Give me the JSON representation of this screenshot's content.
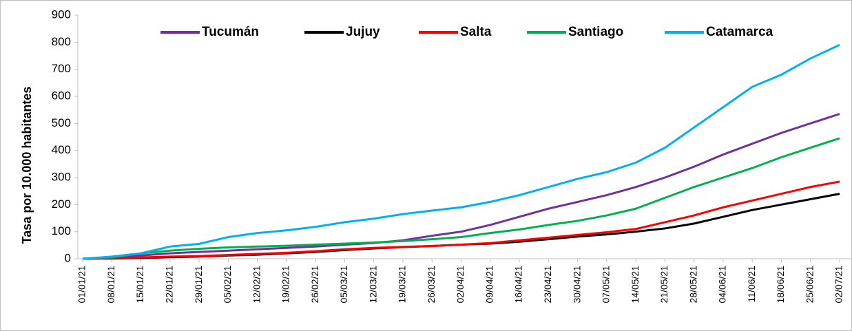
{
  "chart_data": {
    "type": "line",
    "y_label": "Tasa por 10.000 habitantes",
    "categories": [
      "01/01/21",
      "08/01/21",
      "15/01/21",
      "22/01/21",
      "29/01/21",
      "05/02/21",
      "12/02/21",
      "19/02/21",
      "26/02/21",
      "05/03/21",
      "12/03/21",
      "19/03/21",
      "26/03/21",
      "02/04/21",
      "09/04/21",
      "16/04/21",
      "23/04/21",
      "30/04/21",
      "07/05/21",
      "14/05/21",
      "21/05/21",
      "28/05/21",
      "04/06/21",
      "11/06/21",
      "18/06/21",
      "25/06/21",
      "02/07/21"
    ],
    "series": [
      {
        "name": "Tucumán",
        "color": "#7030a0",
        "values": [
          0,
          5,
          12,
          20,
          25,
          30,
          35,
          40,
          45,
          52,
          58,
          68,
          85,
          100,
          125,
          155,
          185,
          210,
          235,
          265,
          300,
          340,
          385,
          425,
          465,
          500,
          535
        ]
      },
      {
        "name": "Jujuy",
        "color": "#000000",
        "values": [
          0,
          1,
          3,
          6,
          8,
          12,
          15,
          20,
          25,
          32,
          38,
          43,
          47,
          52,
          56,
          63,
          72,
          82,
          90,
          100,
          112,
          130,
          155,
          180,
          200,
          220,
          240
        ]
      },
      {
        "name": "Salta",
        "color": "#ff0000",
        "values": [
          0,
          2,
          5,
          8,
          10,
          14,
          18,
          22,
          28,
          35,
          40,
          44,
          47,
          52,
          58,
          68,
          78,
          88,
          98,
          110,
          135,
          160,
          190,
          215,
          240,
          265,
          285
        ]
      },
      {
        "name": "Santiago",
        "color": "#00b050",
        "values": [
          0,
          5,
          20,
          30,
          37,
          42,
          45,
          48,
          52,
          56,
          60,
          65,
          72,
          80,
          95,
          108,
          125,
          140,
          160,
          185,
          225,
          265,
          300,
          335,
          375,
          410,
          445
        ]
      },
      {
        "name": "Catamarca",
        "color": "#00b0f0",
        "values": [
          0,
          8,
          20,
          45,
          55,
          80,
          95,
          105,
          118,
          135,
          148,
          165,
          178,
          190,
          210,
          235,
          265,
          295,
          320,
          355,
          410,
          485,
          560,
          635,
          680,
          740,
          790
        ]
      }
    ],
    "ylim": [
      0,
      900
    ],
    "yticks": [
      0,
      100,
      200,
      300,
      400,
      500,
      600,
      700,
      800,
      900
    ],
    "legend": "top"
  }
}
